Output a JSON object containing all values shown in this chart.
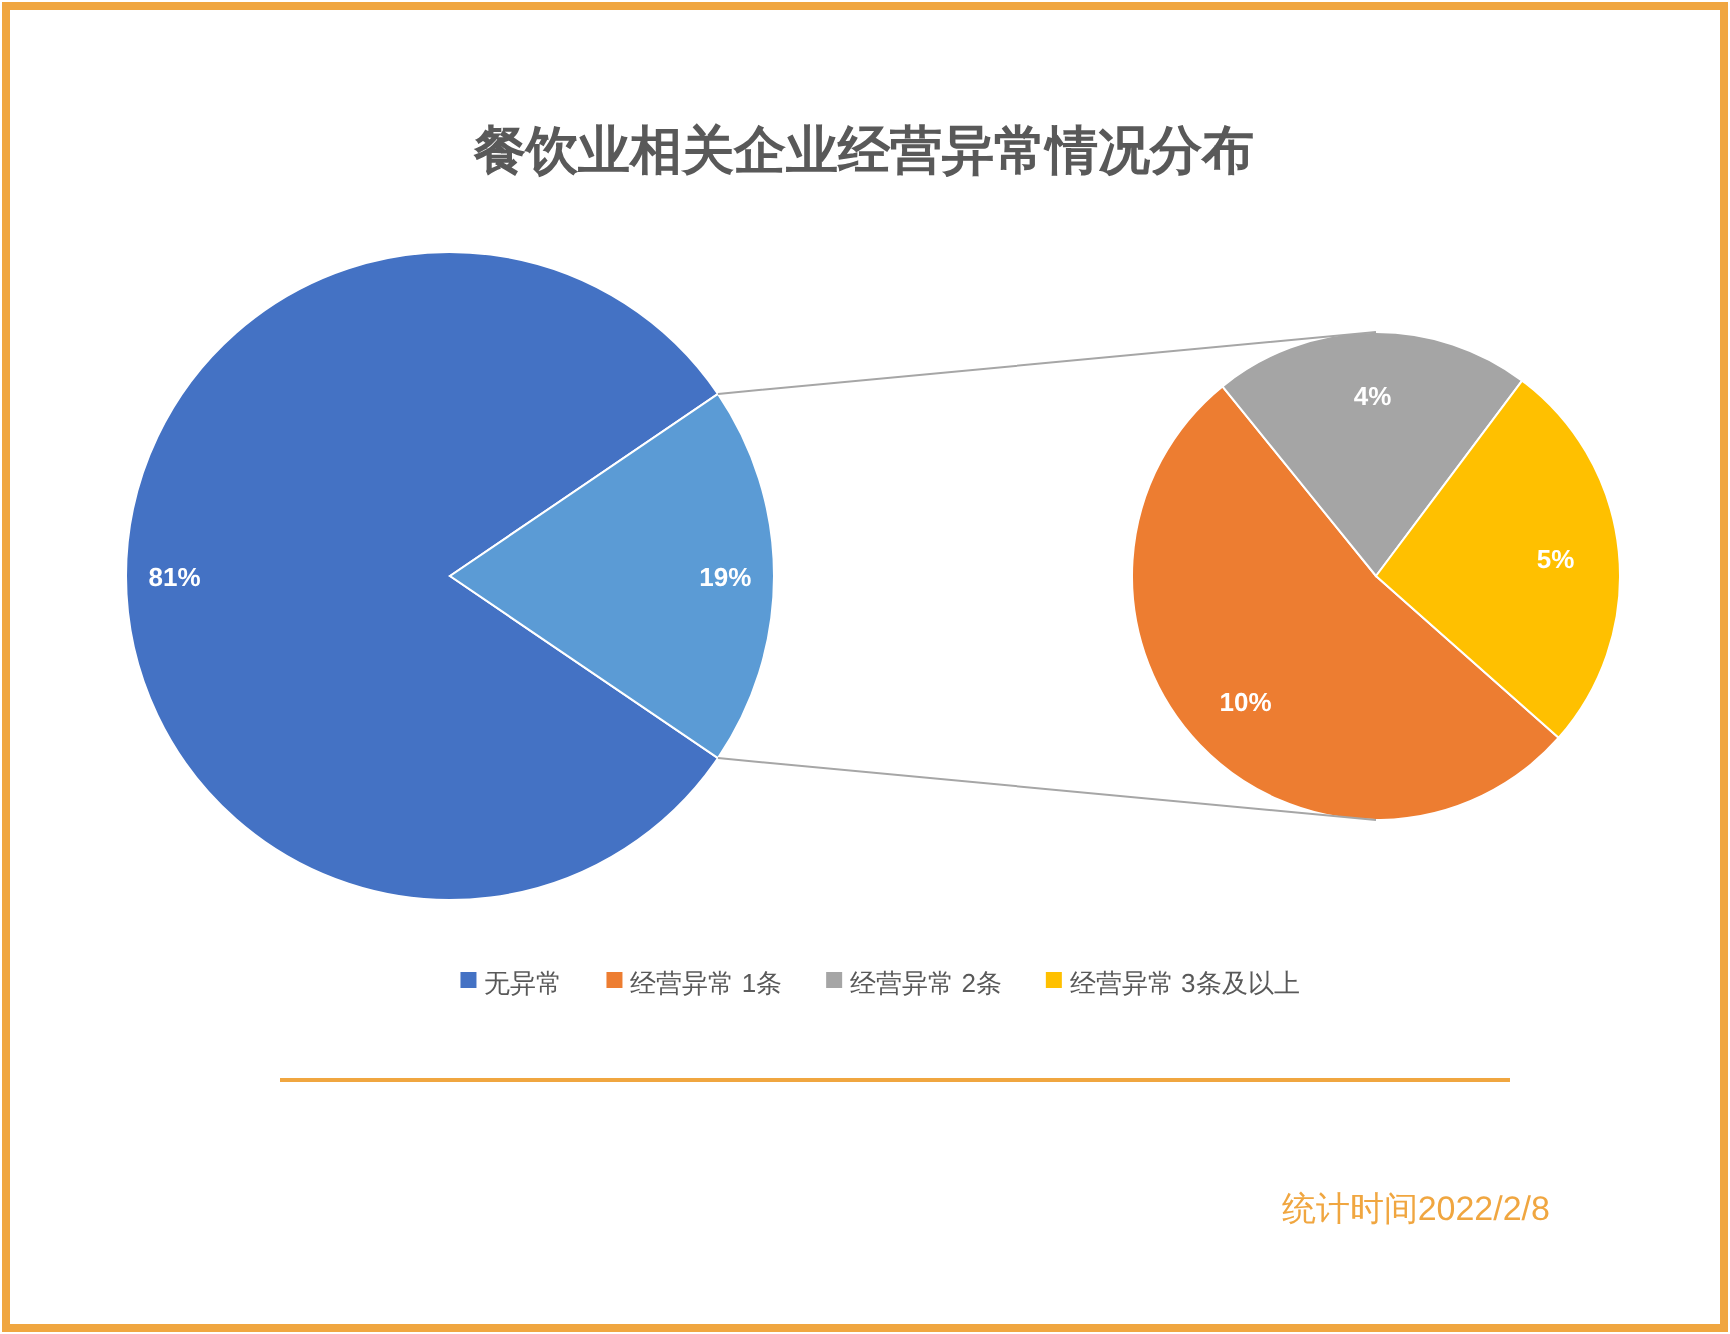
{
  "chart_data": [
    {
      "type": "pie",
      "title": "餐饮业相关企业经营异常情况分布",
      "categories": [
        "无异常",
        null
      ],
      "values": [
        81,
        19
      ],
      "colors": [
        "#4472c4",
        "#5b9bd5"
      ],
      "value_labels": [
        "81%",
        "19%"
      ],
      "legend": "bottom",
      "annotations": [
        "统计时间2022/2/8"
      ]
    },
    {
      "type": "pie",
      "categories": [
        "经营异常 1条",
        "经营异常 2条",
        "经营异常 3条及以上"
      ],
      "values": [
        10,
        4,
        5
      ],
      "colors": [
        "#ed7d31",
        "#a5a5a5",
        "#ffc000"
      ],
      "value_labels": [
        "10%",
        "4%",
        "5%"
      ],
      "legend": "bottom"
    }
  ]
}
